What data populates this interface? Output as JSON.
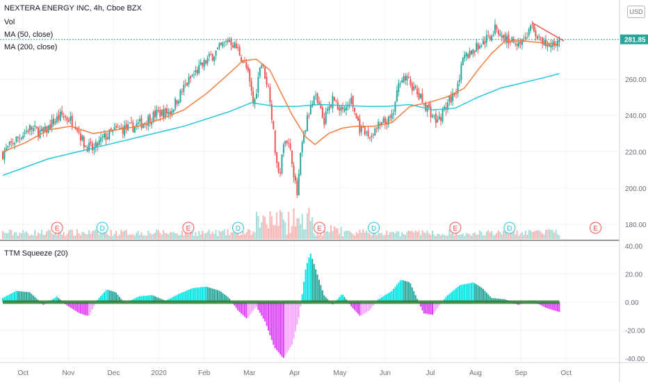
{
  "legend": {
    "title": "NEXTERA ENERGY INC, 4h, Cboe BZX",
    "vol": "Vol",
    "ma50": "MA (50, close)",
    "ma200": "MA (200, close)",
    "indicator": "TTM Squeeze (20)"
  },
  "currency": "USD",
  "last_price": "281.85",
  "colors": {
    "up": "#26a69a",
    "down": "#ef5350",
    "ma50": "#f57c3c",
    "ma200": "#26c6da",
    "trend": "#ef5350",
    "squeeze_pos_rising": "#00e5e5",
    "squeeze_pos_falling": "#26a69a",
    "squeeze_neg_falling": "#e040fb",
    "squeeze_neg_rising": "#f8a5ff",
    "squeeze_dot": "#2e7d32",
    "last_price": "#26a69a",
    "earnings": "#ef5350",
    "dividend": "#26c6da"
  },
  "chart_data": [
    {
      "type": "candlestick",
      "x_unit": "months (0 = Oct 2019)",
      "x_range": [
        0,
        12.6
      ],
      "ylim": [
        172,
        302
      ],
      "price_ticks": [
        "180.00",
        "200.00",
        "220.00",
        "240.00",
        "260.00",
        "281.85"
      ],
      "month_labels": [
        "Oct",
        "Nov",
        "Dec",
        "2020",
        "Feb",
        "Mar",
        "Apr",
        "May",
        "Jun",
        "Jul",
        "Aug",
        "Sep",
        "Oct"
      ],
      "close_path": [
        [
          0.0,
          219
        ],
        [
          0.3,
          227
        ],
        [
          0.6,
          233
        ],
        [
          0.9,
          230
        ],
        [
          1.1,
          236
        ],
        [
          1.3,
          240
        ],
        [
          1.6,
          236
        ],
        [
          1.8,
          224
        ],
        [
          2.0,
          221
        ],
        [
          2.2,
          227
        ],
        [
          2.5,
          232
        ],
        [
          2.8,
          233
        ],
        [
          3.1,
          236
        ],
        [
          3.4,
          241
        ],
        [
          3.7,
          242
        ],
        [
          4.0,
          255
        ],
        [
          4.2,
          262
        ],
        [
          4.5,
          270
        ],
        [
          4.8,
          277
        ],
        [
          5.0,
          282
        ],
        [
          5.2,
          276
        ],
        [
          5.4,
          265
        ],
        [
          5.55,
          245
        ],
        [
          5.7,
          270
        ],
        [
          5.8,
          262
        ],
        [
          5.9,
          252
        ],
        [
          6.0,
          225
        ],
        [
          6.1,
          205
        ],
        [
          6.25,
          230
        ],
        [
          6.4,
          215
        ],
        [
          6.5,
          195
        ],
        [
          6.6,
          222
        ],
        [
          6.75,
          240
        ],
        [
          6.9,
          250
        ],
        [
          7.1,
          237
        ],
        [
          7.3,
          250
        ],
        [
          7.5,
          242
        ],
        [
          7.7,
          248
        ],
        [
          7.9,
          232
        ],
        [
          8.1,
          228
        ],
        [
          8.3,
          234
        ],
        [
          8.6,
          238
        ],
        [
          8.8,
          262
        ],
        [
          9.0,
          258
        ],
        [
          9.2,
          250
        ],
        [
          9.4,
          244
        ],
        [
          9.6,
          236
        ],
        [
          9.8,
          245
        ],
        [
          10.0,
          253
        ],
        [
          10.2,
          272
        ],
        [
          10.5,
          278
        ],
        [
          10.7,
          282
        ],
        [
          10.9,
          288
        ],
        [
          11.1,
          282
        ],
        [
          11.3,
          281
        ],
        [
          11.5,
          281
        ],
        [
          11.7,
          289
        ],
        [
          11.9,
          280
        ],
        [
          12.1,
          277
        ],
        [
          12.3,
          282
        ]
      ],
      "ma50_path": [
        [
          0.0,
          220
        ],
        [
          0.5,
          225
        ],
        [
          1.0,
          232
        ],
        [
          1.5,
          234
        ],
        [
          2.0,
          230
        ],
        [
          2.5,
          232
        ],
        [
          3.0,
          234
        ],
        [
          3.5,
          238
        ],
        [
          4.0,
          243
        ],
        [
          4.5,
          252
        ],
        [
          5.0,
          263
        ],
        [
          5.3,
          270
        ],
        [
          5.6,
          271
        ],
        [
          5.9,
          265
        ],
        [
          6.1,
          255
        ],
        [
          6.4,
          240
        ],
        [
          6.7,
          228
        ],
        [
          6.9,
          224
        ],
        [
          7.2,
          230
        ],
        [
          7.5,
          233
        ],
        [
          7.8,
          234
        ],
        [
          8.2,
          234
        ],
        [
          8.6,
          236
        ],
        [
          9.0,
          245
        ],
        [
          9.4,
          247
        ],
        [
          9.8,
          250
        ],
        [
          10.2,
          255
        ],
        [
          10.5,
          265
        ],
        [
          10.8,
          274
        ],
        [
          11.1,
          281
        ],
        [
          11.5,
          281
        ],
        [
          11.9,
          280
        ],
        [
          12.3,
          279
        ]
      ],
      "ma200_path": [
        [
          0.0,
          207
        ],
        [
          1.0,
          216
        ],
        [
          2.0,
          222
        ],
        [
          3.0,
          228
        ],
        [
          4.0,
          234
        ],
        [
          5.0,
          242
        ],
        [
          5.5,
          247
        ],
        [
          6.0,
          245
        ],
        [
          6.5,
          245
        ],
        [
          7.0,
          246
        ],
        [
          8.0,
          245
        ],
        [
          8.5,
          245
        ],
        [
          9.0,
          246
        ],
        [
          9.5,
          243
        ],
        [
          10.0,
          244
        ],
        [
          10.5,
          250
        ],
        [
          11.0,
          255
        ],
        [
          11.5,
          258
        ],
        [
          12.0,
          261
        ],
        [
          12.3,
          263
        ]
      ],
      "trendline": [
        [
          11.7,
          291
        ],
        [
          12.4,
          281
        ]
      ],
      "events": [
        {
          "x": 1.2,
          "label": "E"
        },
        {
          "x": 2.2,
          "label": "D"
        },
        {
          "x": 4.1,
          "label": "E"
        },
        {
          "x": 5.2,
          "label": "D"
        },
        {
          "x": 7.0,
          "label": "E"
        },
        {
          "x": 8.2,
          "label": "D"
        },
        {
          "x": 10.0,
          "label": "E"
        },
        {
          "x": 11.2,
          "label": "D"
        },
        {
          "x": 13.1,
          "label": "E"
        }
      ]
    },
    {
      "type": "histogram",
      "title": "TTM Squeeze (20)",
      "ylim": [
        -42,
        42
      ],
      "y_ticks": [
        "40.00",
        "20.00",
        "0.00",
        "-20.00",
        "-40.00"
      ],
      "momentum_path": [
        [
          0.0,
          3
        ],
        [
          0.3,
          8
        ],
        [
          0.6,
          7
        ],
        [
          0.9,
          -2
        ],
        [
          1.2,
          4
        ],
        [
          1.4,
          -2
        ],
        [
          1.7,
          -8
        ],
        [
          1.9,
          -10
        ],
        [
          2.1,
          2
        ],
        [
          2.3,
          9
        ],
        [
          2.5,
          7
        ],
        [
          2.7,
          -1
        ],
        [
          3.0,
          4
        ],
        [
          3.3,
          5
        ],
        [
          3.6,
          1
        ],
        [
          3.9,
          6
        ],
        [
          4.2,
          10
        ],
        [
          4.5,
          11
        ],
        [
          4.8,
          8
        ],
        [
          5.0,
          3
        ],
        [
          5.2,
          -6
        ],
        [
          5.4,
          -12
        ],
        [
          5.6,
          -3
        ],
        [
          5.8,
          -14
        ],
        [
          6.0,
          -32
        ],
        [
          6.2,
          -40
        ],
        [
          6.4,
          -30
        ],
        [
          6.55,
          -10
        ],
        [
          6.7,
          25
        ],
        [
          6.8,
          35
        ],
        [
          6.95,
          20
        ],
        [
          7.1,
          5
        ],
        [
          7.3,
          -2
        ],
        [
          7.5,
          6
        ],
        [
          7.7,
          -3
        ],
        [
          7.9,
          -10
        ],
        [
          8.1,
          -6
        ],
        [
          8.3,
          2
        ],
        [
          8.6,
          8
        ],
        [
          8.8,
          16
        ],
        [
          9.0,
          14
        ],
        [
          9.3,
          -8
        ],
        [
          9.5,
          -9
        ],
        [
          9.8,
          4
        ],
        [
          10.1,
          12
        ],
        [
          10.4,
          14
        ],
        [
          10.6,
          10
        ],
        [
          10.8,
          3
        ],
        [
          11.1,
          2
        ],
        [
          11.4,
          -2
        ],
        [
          11.7,
          1
        ],
        [
          12.0,
          -4
        ],
        [
          12.3,
          -7
        ]
      ]
    }
  ]
}
